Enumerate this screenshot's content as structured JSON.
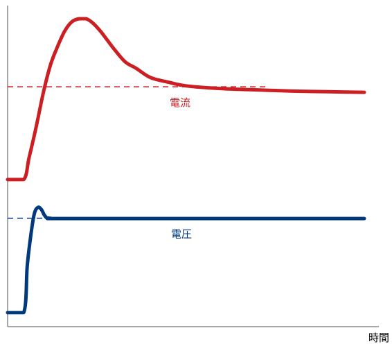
{
  "chart_data": {
    "type": "line",
    "xlabel": "時間",
    "ylabel": "",
    "x_range": [
      0,
      100
    ],
    "y_range": [
      0,
      100
    ],
    "grid": false,
    "series": [
      {
        "name": "電流",
        "color": "#cc1f24",
        "reference_level": 78,
        "points": [
          [
            0,
            48
          ],
          [
            4.5,
            48
          ],
          [
            6,
            55
          ],
          [
            8,
            65
          ],
          [
            10,
            76
          ],
          [
            12,
            85
          ],
          [
            14,
            91
          ],
          [
            16,
            96
          ],
          [
            18,
            99
          ],
          [
            20,
            100
          ],
          [
            22,
            100
          ],
          [
            24,
            98.5
          ],
          [
            26,
            96
          ],
          [
            28,
            93
          ],
          [
            30,
            90
          ],
          [
            33,
            86
          ],
          [
            36,
            84
          ],
          [
            40,
            81
          ],
          [
            45,
            79.5
          ],
          [
            50,
            78.3
          ],
          [
            60,
            77.4
          ],
          [
            70,
            77
          ],
          [
            80,
            76.6
          ],
          [
            90,
            76.4
          ],
          [
            100,
            76.2
          ]
        ]
      },
      {
        "name": "電圧",
        "color": "#003a7d",
        "reference_level": 35.5,
        "points": [
          [
            0,
            5
          ],
          [
            4.5,
            5
          ],
          [
            5.5,
            20
          ],
          [
            6.5,
            30
          ],
          [
            7.5,
            37
          ],
          [
            8.5,
            39
          ],
          [
            9.5,
            38.3
          ],
          [
            10.5,
            36.2
          ],
          [
            12,
            35.5
          ],
          [
            20,
            35.4
          ],
          [
            100,
            35.4
          ]
        ]
      }
    ]
  }
}
